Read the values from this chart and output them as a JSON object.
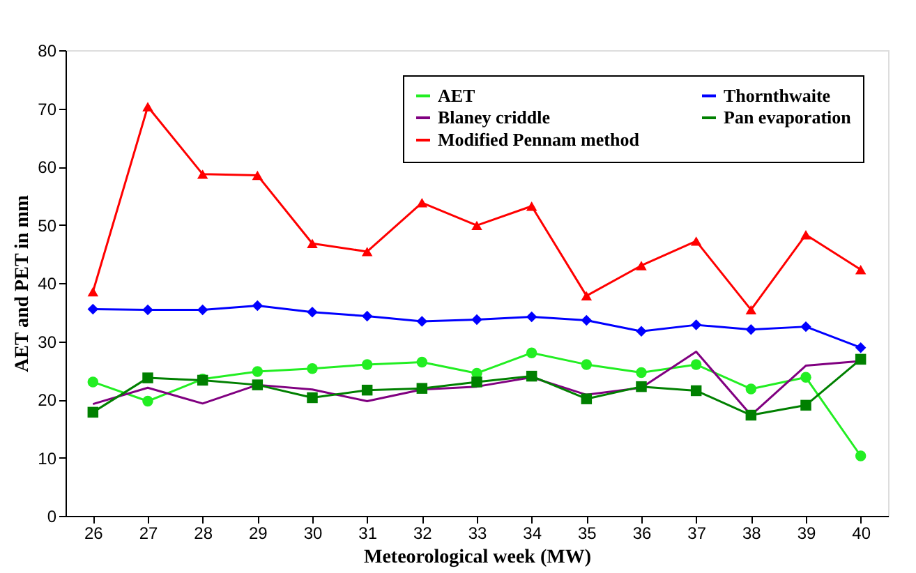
{
  "chart_data": {
    "type": "line",
    "xlabel": "Meteorological week (MW)",
    "ylabel": "AET and PET in mm",
    "categories": [
      "26",
      "27",
      "28",
      "29",
      "30",
      "31",
      "32",
      "33",
      "34",
      "35",
      "36",
      "37",
      "38",
      "39",
      "40"
    ],
    "ylim": [
      0,
      80
    ],
    "yticks": [
      0,
      10,
      20,
      30,
      40,
      50,
      60,
      70,
      80
    ],
    "grid": false,
    "legend": "top right",
    "series": [
      {
        "name": "AET",
        "color": "#22ee22",
        "marker": "circle",
        "values": [
          23,
          19.7,
          23.5,
          24.8,
          25.3,
          26,
          26.4,
          24.5,
          28,
          26,
          24.6,
          26,
          21.8,
          23.8,
          10.3
        ]
      },
      {
        "name": "Blaney  criddle",
        "color": "#800080",
        "marker": "none",
        "values": [
          19.2,
          22,
          19.3,
          22.5,
          21.7,
          19.7,
          21.7,
          22.2,
          23.8,
          20.8,
          22,
          28.2,
          17.3,
          25.8,
          26.6
        ]
      },
      {
        "name": "Modified Pennam method",
        "color": "#ff0000",
        "marker": "triangle",
        "values": [
          38.5,
          70.3,
          58.7,
          58.5,
          46.8,
          45.4,
          53.8,
          49.9,
          53.2,
          37.8,
          43,
          47.2,
          35.4,
          48.3,
          42.3
        ]
      },
      {
        "name": "Thornthwaite",
        "color": "#0000ff",
        "marker": "diamond",
        "values": [
          35.5,
          35.4,
          35.4,
          36.1,
          35,
          34.3,
          33.4,
          33.7,
          34.2,
          33.6,
          31.7,
          32.8,
          32,
          32.5,
          28.9
        ]
      },
      {
        "name": "Pan evaporation",
        "color": "#008000",
        "marker": "square",
        "values": [
          17.8,
          23.7,
          23.3,
          22.5,
          20.3,
          21.6,
          21.9,
          23,
          24,
          20.1,
          22.2,
          21.5,
          17.3,
          19,
          26.9
        ]
      }
    ]
  }
}
